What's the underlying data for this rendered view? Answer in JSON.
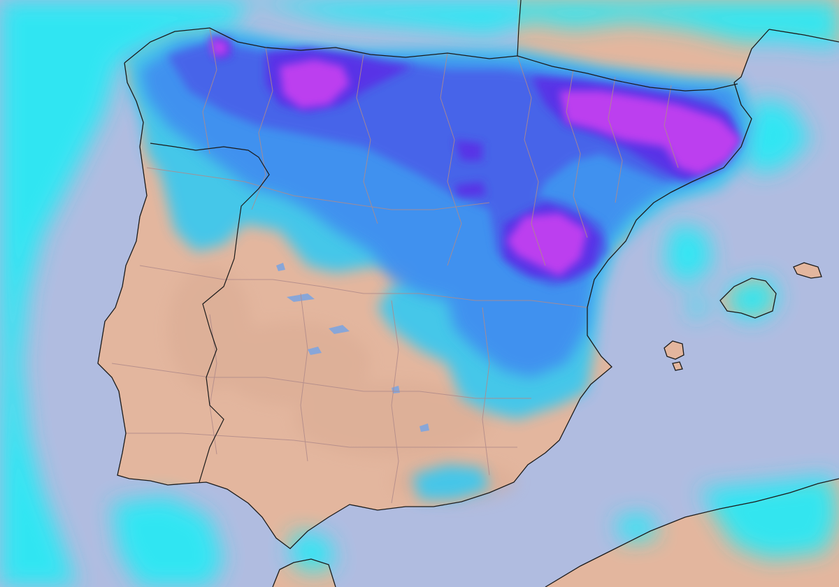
{
  "map": {
    "colors": {
      "sea": "#b0bce0",
      "land": "#e3b69e",
      "land_shade": "#d4a58e",
      "coastline": "#1a1a1a",
      "admin_border": "#b08a8a",
      "precip_light": "#2ae8f4",
      "precip_low": "#3cc8ee",
      "precip_moderate": "#3f8cf0",
      "precip_high": "#4a5de8",
      "precip_very_high": "#5a2fe6",
      "precip_extreme": "#c23ff0",
      "water_bodies": "#88a6d8"
    },
    "layers": [
      "sea",
      "land",
      "precipitation",
      "coastlines",
      "admin-borders",
      "islands"
    ]
  }
}
